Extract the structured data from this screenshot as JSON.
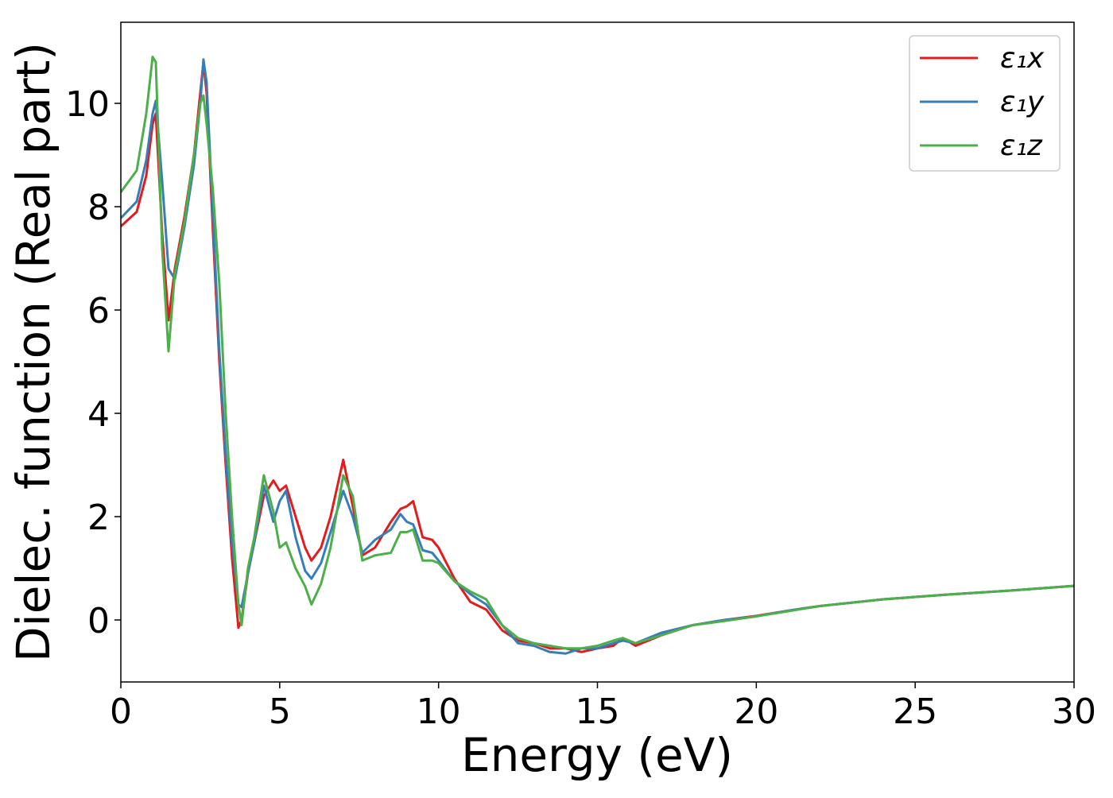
{
  "chart_data": {
    "type": "line",
    "xlabel": "Energy (eV)",
    "ylabel": "Dielec. function (Real part)",
    "x": [
      0,
      0.5,
      0.8,
      1.0,
      1.1,
      1.3,
      1.5,
      1.7,
      2.0,
      2.3,
      2.5,
      2.6,
      2.7,
      2.9,
      3.1,
      3.3,
      3.5,
      3.7,
      3.8,
      4.0,
      4.2,
      4.5,
      4.8,
      5.0,
      5.2,
      5.5,
      5.8,
      6.0,
      6.3,
      6.6,
      7.0,
      7.3,
      7.6,
      8.0,
      8.5,
      8.8,
      9.0,
      9.2,
      9.5,
      9.8,
      10.0,
      10.5,
      11.0,
      11.5,
      12.0,
      12.5,
      13.0,
      13.5,
      14.0,
      14.5,
      15.0,
      15.5,
      15.8,
      16.2,
      17,
      18,
      19,
      20,
      21,
      22,
      24,
      26,
      28,
      30
    ],
    "series": [
      {
        "name": "ε₁x",
        "color": "#e41a1c",
        "values": [
          7.62,
          7.9,
          8.6,
          9.6,
          9.8,
          7.5,
          5.8,
          6.8,
          7.8,
          9.0,
          10.2,
          10.8,
          10.2,
          7.5,
          5.0,
          3.0,
          1.2,
          -0.15,
          0.0,
          0.9,
          1.5,
          2.4,
          2.7,
          2.5,
          2.6,
          2.0,
          1.4,
          1.15,
          1.4,
          2.0,
          3.1,
          2.2,
          1.25,
          1.4,
          1.9,
          2.15,
          2.2,
          2.3,
          1.6,
          1.55,
          1.4,
          0.8,
          0.35,
          0.2,
          -0.2,
          -0.4,
          -0.45,
          -0.55,
          -0.55,
          -0.62,
          -0.55,
          -0.5,
          -0.35,
          -0.5,
          -0.3,
          -0.1,
          0.0,
          0.08,
          0.18,
          0.27,
          0.4,
          0.49,
          0.57,
          0.66
        ]
      },
      {
        "name": "ε₁y",
        "color": "#377eb8",
        "values": [
          7.78,
          8.1,
          8.9,
          9.8,
          10.05,
          8.5,
          6.8,
          6.6,
          7.6,
          8.8,
          10.0,
          10.85,
          10.4,
          7.8,
          5.2,
          3.2,
          1.5,
          0.3,
          0.25,
          0.9,
          1.5,
          2.6,
          1.9,
          2.3,
          2.5,
          1.6,
          0.95,
          0.8,
          1.1,
          1.7,
          2.5,
          2.0,
          1.3,
          1.55,
          1.75,
          2.05,
          1.9,
          1.85,
          1.35,
          1.3,
          1.15,
          0.75,
          0.5,
          0.3,
          -0.1,
          -0.45,
          -0.5,
          -0.62,
          -0.65,
          -0.55,
          -0.55,
          -0.45,
          -0.4,
          -0.45,
          -0.25,
          -0.1,
          0.0,
          0.07,
          0.18,
          0.27,
          0.4,
          0.49,
          0.57,
          0.66
        ]
      },
      {
        "name": "ε₁z",
        "color": "#4daf4a",
        "values": [
          8.28,
          8.7,
          9.8,
          10.9,
          10.8,
          7.2,
          5.2,
          6.7,
          7.7,
          9.0,
          10.0,
          10.15,
          9.6,
          8.3,
          6.5,
          4.0,
          2.0,
          0.3,
          -0.1,
          1.0,
          1.6,
          2.8,
          2.1,
          1.4,
          1.5,
          1.0,
          0.65,
          0.3,
          0.7,
          1.4,
          2.8,
          2.4,
          1.15,
          1.25,
          1.3,
          1.7,
          1.7,
          1.75,
          1.15,
          1.15,
          1.1,
          0.75,
          0.55,
          0.4,
          -0.1,
          -0.35,
          -0.45,
          -0.5,
          -0.55,
          -0.55,
          -0.5,
          -0.4,
          -0.35,
          -0.45,
          -0.3,
          -0.1,
          -0.02,
          0.07,
          0.17,
          0.27,
          0.4,
          0.49,
          0.57,
          0.66
        ]
      }
    ],
    "xlim": [
      0,
      30
    ],
    "xticks": [
      0,
      5,
      10,
      15,
      20,
      25,
      30
    ],
    "ylim": [
      -1.2,
      11.57
    ],
    "yticks": [
      0,
      2,
      4,
      6,
      8,
      10
    ],
    "grid": false,
    "legend": "upper right"
  }
}
